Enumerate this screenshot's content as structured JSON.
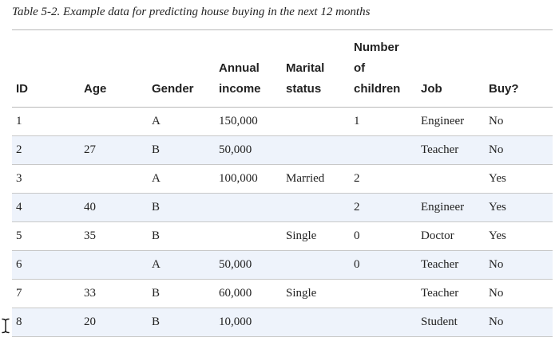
{
  "caption": "Table 5-2. Example data for predicting house buying in the next 12 months",
  "columns": {
    "id": "ID",
    "age": "Age",
    "gender": "Gender",
    "income_l1": "Annual",
    "income_l2": "income",
    "marital_l1": "Marital",
    "marital_l2": "status",
    "children_l1": "Number",
    "children_l2": "of",
    "children_l3": "children",
    "job": "Job",
    "buy": "Buy?"
  },
  "rows": [
    {
      "id": "1",
      "age": "",
      "gender": "A",
      "income": "150,000",
      "marital": "",
      "children": "1",
      "job": "Engineer",
      "buy": "No"
    },
    {
      "id": "2",
      "age": "27",
      "gender": "B",
      "income": "50,000",
      "marital": "",
      "children": "",
      "job": "Teacher",
      "buy": "No"
    },
    {
      "id": "3",
      "age": "",
      "gender": "A",
      "income": "100,000",
      "marital": "Married",
      "children": "2",
      "job": "",
      "buy": "Yes"
    },
    {
      "id": "4",
      "age": "40",
      "gender": "B",
      "income": "",
      "marital": "",
      "children": "2",
      "job": "Engineer",
      "buy": "Yes"
    },
    {
      "id": "5",
      "age": "35",
      "gender": "B",
      "income": "",
      "marital": "Single",
      "children": "0",
      "job": "Doctor",
      "buy": "Yes"
    },
    {
      "id": "6",
      "age": "",
      "gender": "A",
      "income": "50,000",
      "marital": "",
      "children": "0",
      "job": "Teacher",
      "buy": "No"
    },
    {
      "id": "7",
      "age": "33",
      "gender": "B",
      "income": "60,000",
      "marital": "Single",
      "children": "",
      "job": "Teacher",
      "buy": "No"
    },
    {
      "id": "8",
      "age": "20",
      "gender": "B",
      "income": "10,000",
      "marital": "",
      "children": "",
      "job": "Student",
      "buy": "No"
    }
  ],
  "icons": {
    "cursor": "text-cursor-icon"
  },
  "colors": {
    "row_stripe": "#eef3fb",
    "rule": "#b8b8b8"
  }
}
